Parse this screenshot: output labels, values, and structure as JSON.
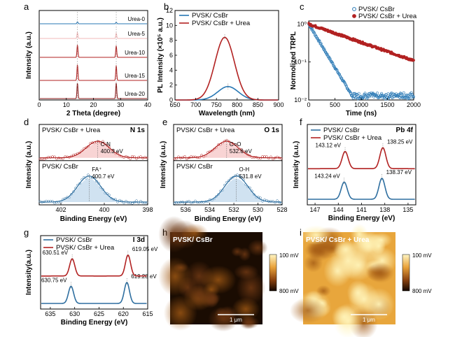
{
  "colors": {
    "blue": "#2777b4",
    "red": "#b22222",
    "pink": "#f2b9b9",
    "darkred": "#8b1a1a",
    "blue_fill": "#a9cbe6",
    "red_fill": "#f3b0b0"
  },
  "chart_data": [
    {
      "id": "a",
      "letter": "a",
      "type": "line",
      "xlabel": "2 Theta (degree)",
      "ylabel": "Intensity (a.u.)",
      "xlim": [
        0,
        40
      ],
      "xticks": [
        0,
        10,
        20,
        30,
        40
      ],
      "series": [
        {
          "name": "Urea-0",
          "peaks": [
            [
              14.1,
              0.12
            ],
            [
              28.4,
              0.1
            ]
          ]
        },
        {
          "name": "Urea-5",
          "peaks": [
            [
              14.1,
              0.35
            ],
            [
              28.4,
              0.3
            ]
          ]
        },
        {
          "name": "Urea-10",
          "peaks": [
            [
              14.1,
              0.75
            ],
            [
              28.4,
              0.7
            ]
          ]
        },
        {
          "name": "Urea-15",
          "peaks": [
            [
              14.1,
              0.95
            ],
            [
              28.4,
              0.9
            ]
          ]
        },
        {
          "name": "Urea-20",
          "peaks": [
            [
              14.1,
              0.95
            ],
            [
              28.4,
              0.95
            ]
          ]
        }
      ]
    },
    {
      "id": "b",
      "letter": "b",
      "type": "line",
      "xlabel": "Wavelength (nm)",
      "ylabel": "PL Intensity (×10⁵ a.u.)",
      "xlim": [
        650,
        900
      ],
      "ylim": [
        0,
        12
      ],
      "xticks": [
        650,
        700,
        750,
        800,
        850,
        900
      ],
      "yticks": [
        0,
        2,
        4,
        6,
        8,
        10,
        12
      ],
      "series": [
        {
          "name": "PVSK/ CsBr",
          "center": 778,
          "amplitude": 1.8,
          "width": 35
        },
        {
          "name": "PVSK/ CsBr + Urea",
          "center": 770,
          "amplitude": 8.4,
          "width": 33
        }
      ]
    },
    {
      "id": "c",
      "letter": "c",
      "type": "scatter",
      "xlabel": "Time (ns)",
      "ylabel": "Normolized TRPL",
      "xlim": [
        0,
        2000
      ],
      "ylim": [
        0.01,
        1.2
      ],
      "yscale": "log",
      "xticks": [
        0,
        500,
        1000,
        1500,
        2000
      ],
      "ytick_labels": [
        "10⁻²",
        "10⁻¹",
        "10⁰"
      ],
      "series": [
        {
          "name": "PVSK/ CsBr",
          "tau": 190
        },
        {
          "name": "PVSK/ CsBr + Urea",
          "tau": 900
        }
      ]
    },
    {
      "id": "d",
      "letter": "d",
      "type": "line",
      "title": "N 1s",
      "xlabel": "Binding Energy (eV)",
      "ylabel": "Intensity (a.u.)",
      "xlim": [
        403,
        398
      ],
      "xticks": [
        402,
        400,
        398
      ],
      "top_label": "PVSK/ CsBr + Urea",
      "bottom_label": "PVSK/ CsBr",
      "top_peaks": [
        {
          "label": "C-N",
          "value": "400.3 eV",
          "center": 400.3
        }
      ],
      "bottom_peaks": [
        {
          "label": "FA⁺",
          "value": "400.7 eV",
          "center": 400.7
        }
      ]
    },
    {
      "id": "e",
      "letter": "e",
      "type": "line",
      "title": "O 1s",
      "xlabel": "Binding Energy (eV)",
      "ylabel": "Intensity (a.u.)",
      "xlim": [
        537,
        528
      ],
      "xticks": [
        536,
        534,
        532,
        530,
        528
      ],
      "top_label": "PVSK/ CsBr + Urea",
      "bottom_label": "PVSK/ CsBr",
      "top_peaks": [
        {
          "label": "C=O",
          "value": "532.6 eV",
          "center": 532.6
        }
      ],
      "bottom_peaks": [
        {
          "label": "O-H",
          "value": "531.8 eV",
          "center": 531.8
        }
      ]
    },
    {
      "id": "f",
      "letter": "f",
      "type": "line",
      "title": "Pb 4f",
      "xlabel": "Binding Energy (eV)",
      "ylabel": "Intensity (a.u.)",
      "xlim": [
        148,
        134
      ],
      "xticks": [
        147,
        144,
        141,
        138,
        135
      ],
      "series": [
        {
          "name": "PVSK/ CsBr",
          "peaks": [
            "143.24 eV",
            "138.37 eV"
          ],
          "centers": [
            143.24,
            138.37
          ]
        },
        {
          "name": "PVSK/ CsBr + Urea",
          "peaks": [
            "143.12 eV",
            "138.25 eV"
          ],
          "centers": [
            143.12,
            138.25
          ]
        }
      ]
    },
    {
      "id": "g",
      "letter": "g",
      "type": "line",
      "title": "I 3d",
      "xlabel": "Binding Energy (eV)",
      "ylabel": "Intensity(a.u.)",
      "xlim": [
        637,
        615
      ],
      "xticks": [
        635,
        630,
        625,
        620,
        615
      ],
      "series": [
        {
          "name": "PVSK/ CsBr",
          "peaks": [
            "630.75 eV",
            "619.28 eV"
          ],
          "centers": [
            630.75,
            619.28
          ]
        },
        {
          "name": "PVSK/ CsBr + Urea",
          "peaks": [
            "630.51 eV",
            "619.05 eV"
          ],
          "centers": [
            630.51,
            619.05
          ]
        }
      ]
    },
    {
      "id": "h",
      "letter": "h",
      "type": "heatmap",
      "title": "PVSK/ CsBr",
      "scalebar": "1 μm",
      "colorbar": [
        "100 mV",
        "800 mV"
      ]
    },
    {
      "id": "i",
      "letter": "i",
      "type": "heatmap",
      "title": "PVSK/ CsBr + Urea",
      "scalebar": "1 μm",
      "colorbar": [
        "100 mV",
        "800 mV"
      ]
    }
  ]
}
